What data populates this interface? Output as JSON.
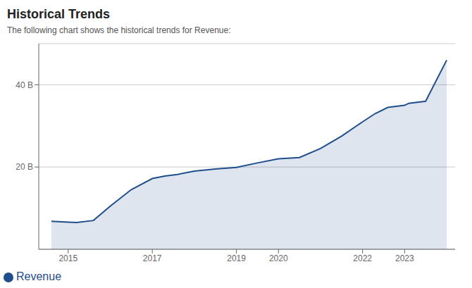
{
  "chart_data": {
    "type": "area",
    "title": "Historical Trends",
    "subtitle": "The following chart shows the historical trends for Revenue:",
    "x": [
      2014.6,
      2015.0,
      2015.2,
      2015.6,
      2016.0,
      2016.5,
      2017.0,
      2017.3,
      2017.6,
      2018.0,
      2018.5,
      2019.0,
      2019.5,
      2020.0,
      2020.5,
      2021.0,
      2021.5,
      2022.0,
      2022.3,
      2022.6,
      2023.0,
      2023.1,
      2023.5,
      2024.0
    ],
    "series": [
      {
        "name": "Revenue",
        "color": "#1f4e8c",
        "values": [
          6.8,
          6.6,
          6.5,
          7.0,
          10.5,
          14.5,
          17.2,
          17.8,
          18.2,
          19.0,
          19.5,
          19.9,
          21.0,
          22.0,
          22.3,
          24.5,
          27.5,
          31.0,
          33.0,
          34.5,
          35.0,
          35.5,
          36.0,
          46.0
        ]
      }
    ],
    "xlim": [
      2014.3,
      2024.2
    ],
    "xticks": [
      2015,
      2017,
      2019,
      2020,
      2022,
      2023
    ],
    "ylim": [
      0,
      50
    ],
    "yticks": [
      {
        "value": 20,
        "label": "20 B"
      },
      {
        "value": 40,
        "label": "40 B"
      }
    ],
    "grid": true,
    "legend": "lower left"
  }
}
